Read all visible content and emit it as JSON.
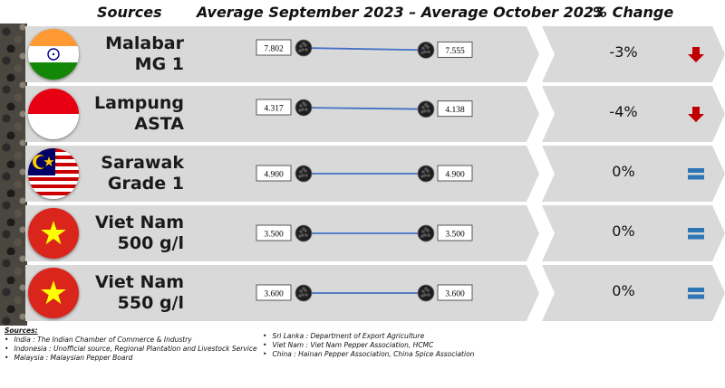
{
  "headers": {
    "sources": "Sources",
    "period": "Average September 2023 – Average October 2023",
    "change": "% Change"
  },
  "chart_data": {
    "type": "line",
    "title": "Average September 2023 – Average October 2023",
    "x": [
      "Average September 2023",
      "Average October 2023"
    ],
    "series": [
      {
        "origin_line1": "Malabar",
        "origin_line2": "MG 1",
        "flag": "india-flag",
        "values": [
          7.802,
          7.555
        ],
        "labels": [
          "7.802",
          "7.555"
        ],
        "change": "-3%",
        "trend": "down"
      },
      {
        "origin_line1": "Lampung",
        "origin_line2": "ASTA",
        "flag": "indonesia-flag",
        "values": [
          4.317,
          4.138
        ],
        "labels": [
          "4.317",
          "4.138"
        ],
        "change": "-4%",
        "trend": "down"
      },
      {
        "origin_line1": "Sarawak",
        "origin_line2": "Grade 1",
        "flag": "malaysia-flag",
        "values": [
          4.9,
          4.9
        ],
        "labels": [
          "4.900",
          "4.900"
        ],
        "change": "0%",
        "trend": "flat"
      },
      {
        "origin_line1": "Viet Nam",
        "origin_line2": "500 g/l",
        "flag": "vietnam-flag",
        "values": [
          3.5,
          3.5
        ],
        "labels": [
          "3.500",
          "3.500"
        ],
        "change": "0%",
        "trend": "flat"
      },
      {
        "origin_line1": "Viet Nam",
        "origin_line2": "550 g/l",
        "flag": "vietnam-flag",
        "values": [
          3.6,
          3.6
        ],
        "labels": [
          "3.600",
          "3.600"
        ],
        "change": "0%",
        "trend": "flat"
      }
    ]
  },
  "footer": {
    "title": "Sources:",
    "left": [
      "India : The Indian Chamber of Commerce & Industry",
      "Indonesia : Unofficial source, Regional Plantation and Livestock Service",
      "Malaysia : Malaysian Pepper Board"
    ],
    "right": [
      "Sri Lanka : Department of Export Agriculture",
      "Viet Nam : Viet Nam Pepper Association, HCMC",
      "China : Hainan Pepper Association, China Spice Association"
    ]
  },
  "colors": {
    "line": "#4472c4",
    "down_arrow": "#c00000",
    "flat_indicator": "#2e75b6",
    "panel": "#d9d9d9"
  }
}
